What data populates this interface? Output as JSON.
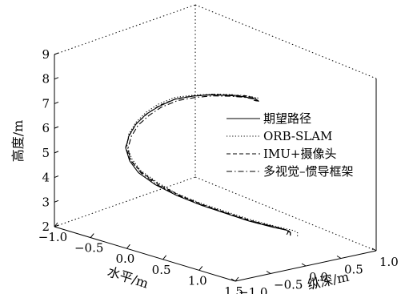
{
  "chart_data": {
    "type": "line",
    "projection": "3d",
    "xlabel": "水平/m",
    "ylabel": "纵深/m",
    "zlabel": "高度/m",
    "xlim": [
      -1.0,
      1.5
    ],
    "ylim": [
      -1.0,
      1.0
    ],
    "zlim": [
      2,
      9
    ],
    "xticks": [
      "−1.0",
      "−0.5",
      "0.0",
      "0.5",
      "1.0",
      "1.5"
    ],
    "yticks": [
      "−1.0",
      "−0.5",
      "0.0",
      "0.5",
      "1.0"
    ],
    "zticks": [
      "2",
      "3",
      "4",
      "5",
      "6",
      "7",
      "8",
      "9"
    ],
    "legend_position": "right",
    "series": [
      {
        "name": "期望路径",
        "style": "solid",
        "x": [
          0.8,
          0.85,
          0.9,
          0.95,
          1.0,
          1.0,
          0.95,
          0.8,
          0.6,
          0.35,
          0.1,
          -0.15,
          -0.35,
          -0.55,
          -0.7,
          -0.8,
          -0.85,
          -0.82,
          -0.75,
          -0.6,
          -0.4,
          -0.15,
          0.1,
          0.35,
          0.55,
          0.7,
          0.8
        ],
        "y": [
          0.5,
          0.45,
          0.35,
          0.2,
          0.05,
          -0.1,
          -0.25,
          -0.4,
          -0.55,
          -0.65,
          -0.7,
          -0.68,
          -0.6,
          -0.45,
          -0.25,
          -0.05,
          0.15,
          0.3,
          0.45,
          0.55,
          0.6,
          0.6,
          0.55,
          0.45,
          0.3,
          0.15,
          0.0
        ],
        "z": [
          2.3,
          2.5,
          2.7,
          2.9,
          3.1,
          3.3,
          3.5,
          3.75,
          4.0,
          4.25,
          4.5,
          4.75,
          5.0,
          5.25,
          5.5,
          5.75,
          6.0,
          6.25,
          6.5,
          6.7,
          6.9,
          7.1,
          7.3,
          7.5,
          7.7,
          7.9,
          8.1
        ]
      },
      {
        "name": "ORB-SLAM",
        "style": "dotted",
        "x": [
          0.85,
          0.9,
          0.95,
          1.0,
          1.02,
          1.0,
          0.92,
          0.75,
          0.55,
          0.3,
          0.05,
          -0.2,
          -0.4,
          -0.6,
          -0.75,
          -0.85,
          -0.9,
          -0.88,
          -0.8,
          -0.62,
          -0.4,
          -0.15,
          0.1,
          0.35,
          0.5,
          0.6,
          0.65
        ],
        "y": [
          0.55,
          0.5,
          0.4,
          0.25,
          0.1,
          -0.05,
          -0.2,
          -0.35,
          -0.5,
          -0.6,
          -0.62,
          -0.6,
          -0.52,
          -0.38,
          -0.2,
          0.0,
          0.2,
          0.35,
          0.5,
          0.6,
          0.65,
          0.65,
          0.6,
          0.5,
          0.35,
          0.2,
          0.05
        ],
        "z": [
          2.3,
          2.5,
          2.7,
          2.9,
          3.1,
          3.3,
          3.5,
          3.75,
          4.0,
          4.25,
          4.5,
          4.75,
          5.0,
          5.25,
          5.5,
          5.75,
          6.0,
          6.25,
          6.5,
          6.7,
          6.9,
          7.1,
          7.3,
          7.5,
          7.7,
          7.9,
          8.1
        ]
      },
      {
        "name": "IMU+摄像头",
        "style": "dashed",
        "x": [
          0.75,
          0.82,
          0.88,
          0.95,
          0.98,
          0.98,
          0.92,
          0.78,
          0.58,
          0.35,
          0.1,
          -0.15,
          -0.38,
          -0.58,
          -0.72,
          -0.82,
          -0.86,
          -0.84,
          -0.76,
          -0.6,
          -0.4,
          -0.15,
          0.1,
          0.3,
          0.45,
          0.55,
          0.6
        ],
        "y": [
          0.5,
          0.45,
          0.35,
          0.22,
          0.08,
          -0.08,
          -0.22,
          -0.38,
          -0.52,
          -0.62,
          -0.66,
          -0.64,
          -0.56,
          -0.42,
          -0.22,
          -0.02,
          0.18,
          0.33,
          0.47,
          0.57,
          0.63,
          0.63,
          0.58,
          0.48,
          0.34,
          0.2,
          0.05
        ],
        "z": [
          2.3,
          2.5,
          2.7,
          2.9,
          3.1,
          3.3,
          3.5,
          3.75,
          4.0,
          4.25,
          4.5,
          4.75,
          5.0,
          5.25,
          5.5,
          5.75,
          6.0,
          6.25,
          6.5,
          6.7,
          6.9,
          7.1,
          7.3,
          7.5,
          7.7,
          7.9,
          8.1
        ]
      },
      {
        "name": "多视觉–惯导框架",
        "style": "dashdot",
        "x": [
          0.78,
          0.84,
          0.9,
          0.96,
          1.0,
          0.99,
          0.94,
          0.8,
          0.6,
          0.36,
          0.12,
          -0.12,
          -0.34,
          -0.52,
          -0.66,
          -0.76,
          -0.8,
          -0.78,
          -0.7,
          -0.55,
          -0.36,
          -0.12,
          0.12,
          0.36,
          0.56,
          0.7,
          0.78
        ],
        "y": [
          0.52,
          0.46,
          0.36,
          0.22,
          0.07,
          -0.08,
          -0.24,
          -0.39,
          -0.54,
          -0.64,
          -0.69,
          -0.67,
          -0.59,
          -0.45,
          -0.26,
          -0.06,
          0.14,
          0.29,
          0.44,
          0.54,
          0.59,
          0.59,
          0.54,
          0.44,
          0.3,
          0.15,
          0.0
        ],
        "z": [
          2.3,
          2.5,
          2.7,
          2.9,
          3.1,
          3.3,
          3.5,
          3.75,
          4.0,
          4.25,
          4.5,
          4.75,
          5.0,
          5.25,
          5.5,
          5.75,
          6.0,
          6.25,
          6.5,
          6.7,
          6.9,
          7.1,
          7.3,
          7.5,
          7.7,
          7.9,
          8.1
        ]
      }
    ]
  }
}
